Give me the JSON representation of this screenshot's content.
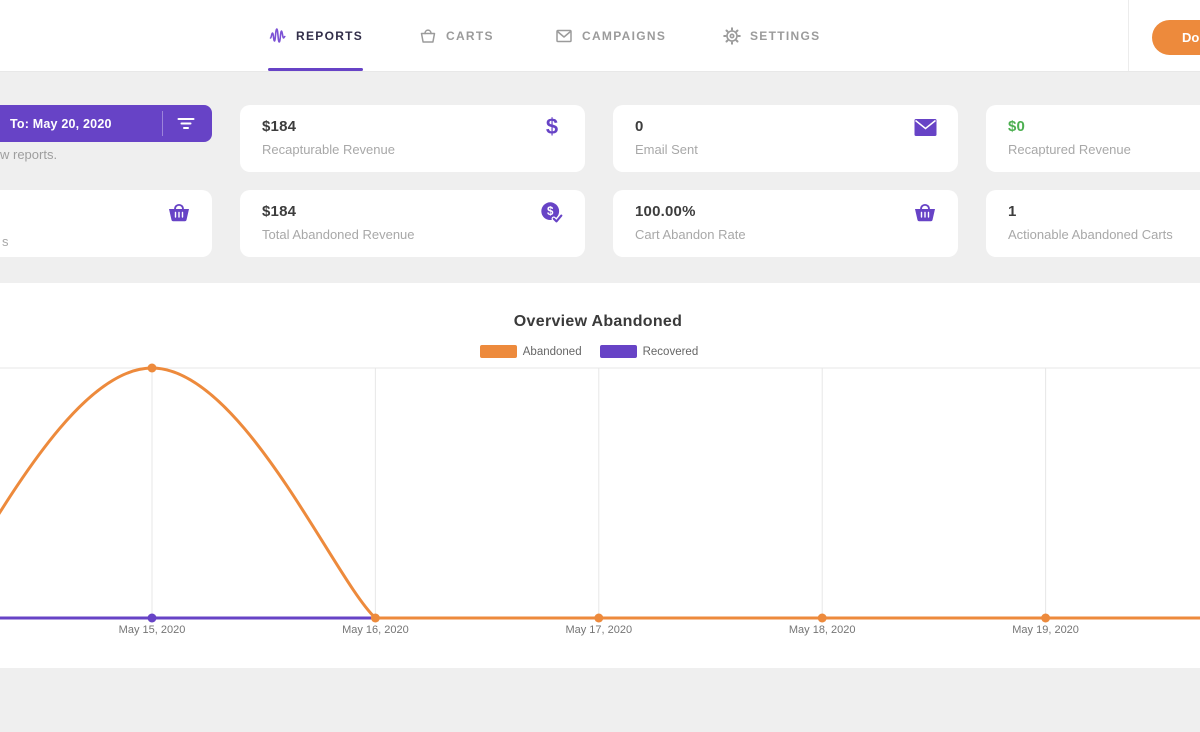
{
  "nav": {
    "tabs": [
      {
        "id": "reports",
        "label": "REPORTS",
        "icon": "pulse-icon",
        "active": true
      },
      {
        "id": "carts",
        "label": "CARTS",
        "icon": "cart-icon",
        "active": false
      },
      {
        "id": "campaigns",
        "label": "CAMPAIGNS",
        "icon": "envelope-icon",
        "active": false
      },
      {
        "id": "settings",
        "label": "SETTINGS",
        "icon": "gear-icon",
        "active": false
      }
    ],
    "download_button_visible_label": "Do"
  },
  "filters": {
    "date_to": "To: May 20, 2020",
    "hint_fragment": "w reports.",
    "filter_icon": "filter-lines-icon"
  },
  "stats": {
    "cards": [
      {
        "id": "recapturable-revenue",
        "value": "$184",
        "label": "Recapturable Revenue",
        "icon": "dollar-icon"
      },
      {
        "id": "email-sent",
        "value": "0",
        "label": "Email Sent",
        "icon": "envelope-filled-icon"
      },
      {
        "id": "recaptured-revenue",
        "value": "$0",
        "label": "Recaptured Revenue",
        "value_color": "#4caf50"
      },
      {
        "id": "cut-left-card",
        "label_fragment": "s",
        "icon": "basket-icon"
      },
      {
        "id": "total-abandoned-revenue",
        "value": "$184",
        "label": "Total Abandoned Revenue",
        "icon": "dollar-circle-check-icon"
      },
      {
        "id": "cart-abandon-rate",
        "value": "100.00%",
        "label": "Cart Abandon Rate",
        "icon": "basket-icon"
      },
      {
        "id": "actionable-abandoned-carts",
        "value": "1",
        "label": "Actionable Abandoned Carts"
      }
    ]
  },
  "chart_data": {
    "type": "line",
    "title": "Overview Abandoned",
    "legend": [
      {
        "name": "Abandoned",
        "color": "#ed8a3c"
      },
      {
        "name": "Recovered",
        "color": "#6743c6"
      }
    ],
    "x_labels": [
      "May 15, 2020",
      "May 16, 2020",
      "May 17, 2020",
      "May 18, 2020",
      "May 19, 2020"
    ],
    "series": [
      {
        "name": "Abandoned",
        "values": [
          1,
          0,
          0,
          0,
          0
        ]
      },
      {
        "name": "Recovered",
        "values": [
          0,
          0,
          0,
          0,
          0
        ]
      }
    ],
    "ylim": [
      0,
      1
    ],
    "grid": true,
    "legend_position": "top"
  },
  "colors": {
    "accent_purple": "#6743c6",
    "accent_orange": "#ed8a3c",
    "positive_green": "#4caf50",
    "background": "#efefef"
  }
}
